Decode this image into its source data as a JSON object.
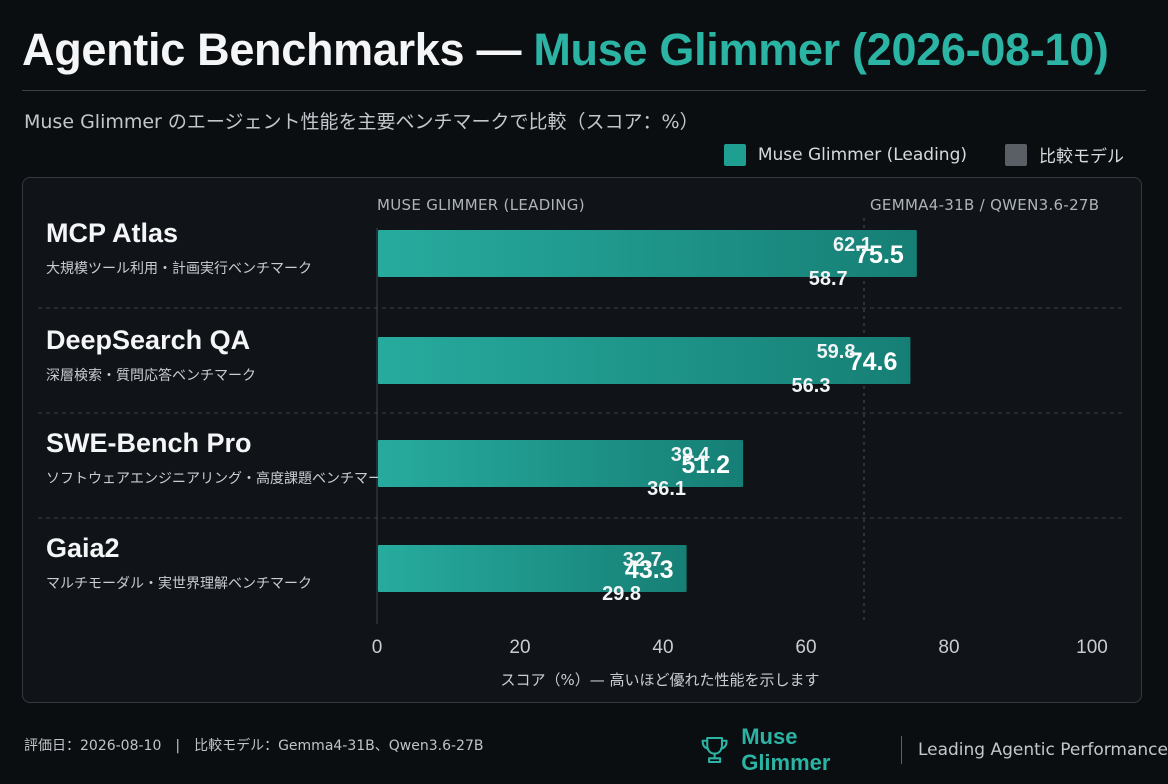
{
  "header": {
    "title_main": "Agentic Benchmarks —",
    "title_accent": "Muse Glimmer (2026-08-10)",
    "subtitle": "Muse Glimmer のエージェント性能を主要ベンチマークで比較（スコア：%）"
  },
  "legend": {
    "items": [
      {
        "label": "Muse Glimmer (Leading)",
        "color": "#1f9e92"
      },
      {
        "label": "比較モデル",
        "color": "#5a5f66"
      }
    ]
  },
  "chart_data": {
    "type": "bar",
    "orientation": "horizontal",
    "left_header": "MUSE GLIMMER (LEADING)",
    "right_header": "GEMMA4-31B / QWEN3.6-27B",
    "categories": [
      "MCP Atlas",
      "DeepSearch QA",
      "SWE-Bench Pro",
      "Gaia2"
    ],
    "descriptions": [
      "大規模ツール利用・計画実行ベンチマーク",
      "深層検索・質問応答ベンチマーク",
      "ソフトウェアエンジニアリング・高度課題ベンチマーク",
      "マルチモーダル・実世界理解ベンチマーク"
    ],
    "series": [
      {
        "name": "Muse Glimmer (Leading)",
        "values": [
          75.5,
          74.6,
          51.2,
          43.3
        ],
        "color": "#1f9e92"
      },
      {
        "values": [
          62.1,
          59.8,
          39.4,
          32.7
        ],
        "color": "#5a5f66"
      },
      {
        "values": [
          58.7,
          56.3,
          36.1,
          29.8
        ],
        "color": "#5a5f66"
      }
    ],
    "xlim": [
      0,
      100
    ],
    "xticks": [
      0,
      20,
      40,
      60,
      80,
      100
    ],
    "xlabel": "スコア（%）— 高いほど優れた性能を示します",
    "grid": false
  },
  "footer": {
    "left": "評価日：2026-08-10　|　比較モデル：Gemma4-31B、Qwen3.6-27B",
    "brand": "Muse Glimmer",
    "tagline": "Leading Agentic Performance",
    "brand_icon": "trophy-icon"
  }
}
